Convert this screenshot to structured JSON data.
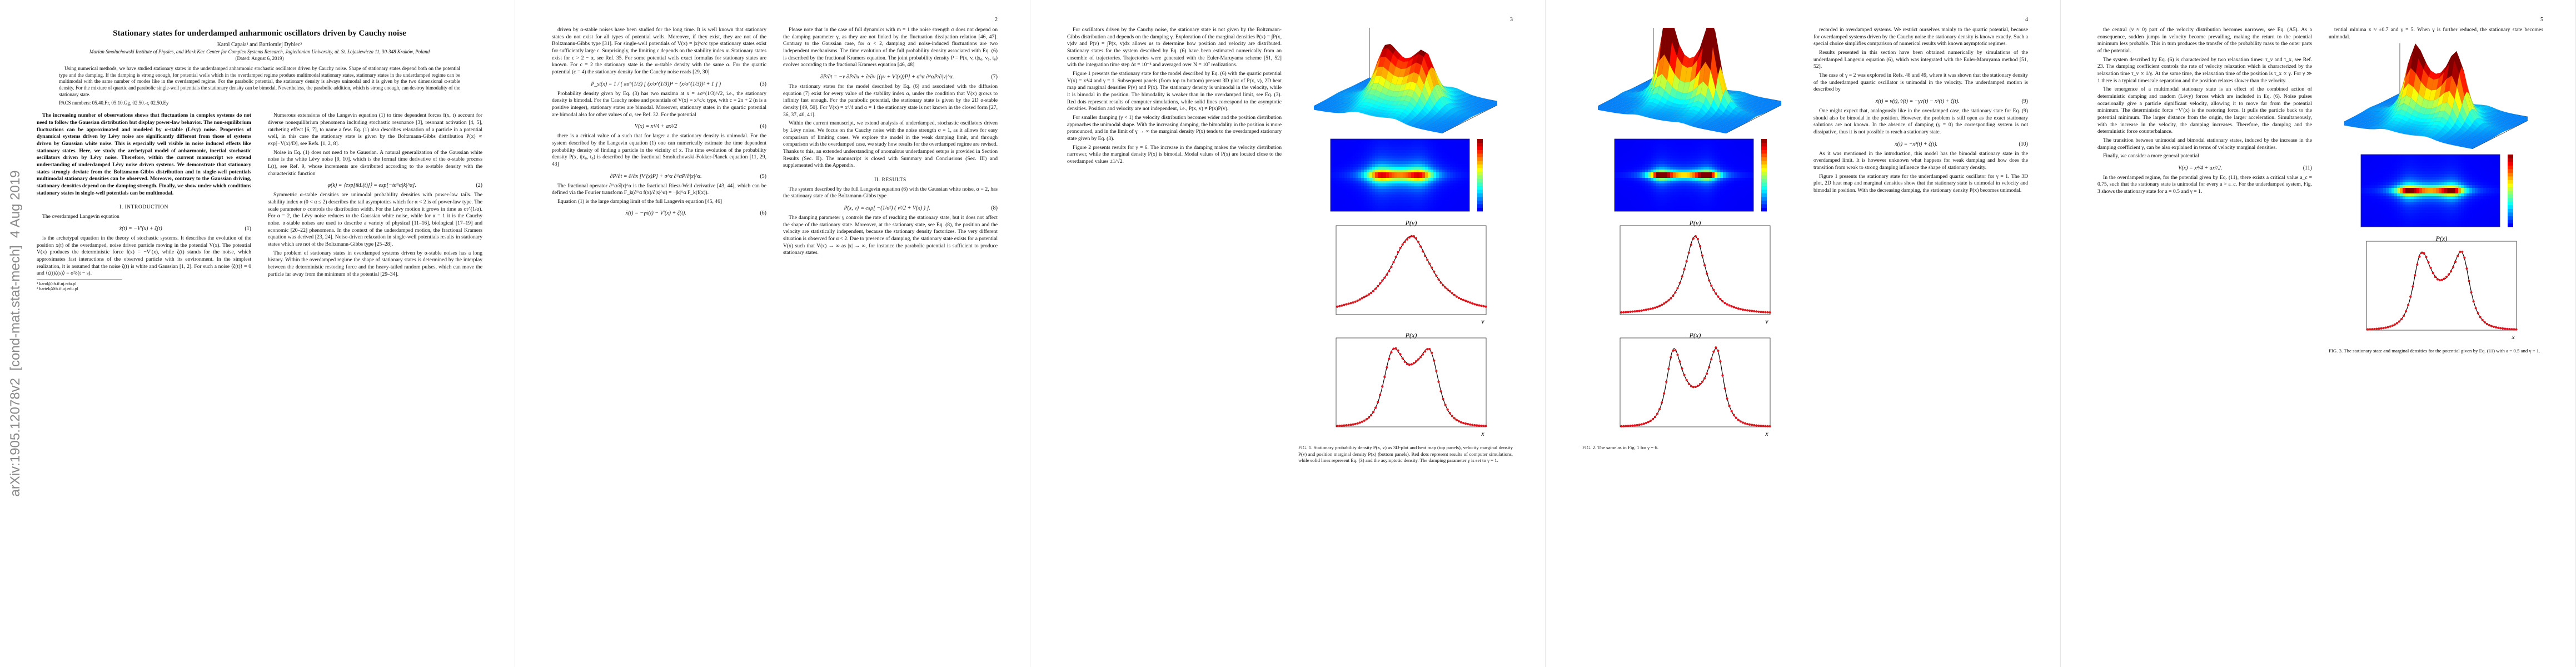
{
  "arxiv_stamp": "arXiv:1905.12078v2  [cond-mat.stat-mech]  4 Aug 2019",
  "pages": [
    {
      "header": {
        "title": "Stationary states for underdamped anharmonic oscillators driven by Cauchy noise",
        "authors": "Karol Capała¹ and Bartłomiej Dybiec²",
        "affiliation": "Marian Smoluchowski Institute of Physics, and Mark Kac Center for Complex Systems Research, Jagiellonian University, ul. St. Łojasiewicza 11, 30-348 Kraków, Poland",
        "date": "(Dated: August 6, 2019)",
        "abstract": "Using numerical methods, we have studied stationary states in the underdamped anharmonic stochastic oscillators driven by Cauchy noise. Shape of stationary states depend both on the potential type and the damping. If the damping is strong enough, for potential wells which in the overdamped regime produce multimodal stationary states, stationary states in the underdamped regime can be multimodal with the same number of modes like in the overdamped regime. For the parabolic potential, the stationary density is always unimodal and it is given by the two dimensional α-stable density. For the mixture of quartic and parabolic single-well potentials the stationary density can be bimodal. Nevertheless, the parabolic addition, which is strong enough, can destroy bimodality of the stationary state.",
        "pacs": "PACS numbers: 05.40.Fr, 05.10.Gg, 02.50.-r, 02.50.Ey"
      },
      "columns": [
        [
          {
            "bold_paragraph": "The increasing number of observations shows that fluctuations in complex systems do not need to follow the Gaussian distribution but display power-law behavior. The non-equilibrium fluctuations can be approximated and modeled by α-stable (Lévy) noise. Properties of dynamical systems driven by Lévy noise are significantly different from those of systems driven by Gaussian white noise. This is especially well visible in noise induced effects like stationary states. Here, we study the archetypal model of anharmonic, inertial stochastic oscillators driven by Lévy noise. Therefore, within the current manuscript we extend understanding of underdamped Lévy noise driven systems. We demonstrate that stationary states strongly deviate from the Boltzmann-Gibbs distribution and in single-well potentials multimodal stationary densities can be observed. Moreover, contrary to the Gaussian driving, stationary densities depend on the damping strength. Finally, we show under which conditions stationary states in single-well potentials can be multimodal."
          },
          {
            "heading": "I.  INTRODUCTION"
          },
          {
            "paragraph": "The overdamped Langevin equation"
          },
          {
            "equation": "ẋ(t) = −V′(x) + ζ(t)",
            "number": "(1)"
          },
          {
            "paragraph": "is the archetypal equation in the theory of stochastic systems. It describes the evolution of the position x(t) of the overdamped, noise driven particle moving in the potential V(x). The potential V(x) produces the deterministic force f(x) = −V′(x), while ζ(t) stands for the noise, which approximates fast interactions of the observed particle with its environment. In the simplest realization, it is assumed that the noise ζ(t) is white and Gaussian [1, 2]. For such a noise ⟨ζ(t)⟩ = 0 and ⟨ζ(t)ζ(s)⟩ = σ²δ(t − s)."
          },
          {
            "footnotes": [
              "¹ karol@th.if.uj.edu.pl",
              "² bartek@th.if.uj.edu.pl"
            ]
          }
        ],
        [
          {
            "paragraph": "Numerous extensions of the Langevin equation (1) to time dependent forces f(x, t) account for diverse nonequilibrium phenomena including stochastic resonance [3], resonant activation [4, 5], ratcheting effect [6, 7], to name a few. Eq. (1) also describes relaxation of a particle in a potential well, in this case the stationary state is given by the Boltzmann-Gibbs distribution P(x) ∝ exp[−V(x)/D], see Refs. [1, 2, 8]."
          },
          {
            "paragraph": "Noise in Eq. (1) does not need to be Gaussian. A natural generalization of the Gaussian white noise is the white Lévy noise [9, 10], which is the formal time derivative of the α-stable process L(t), see Ref. 9, whose increments are distributed according to the α-stable density with the characteristic function"
          },
          {
            "equation": "φ(k) = ⟨exp[ikL(t)]⟩ = exp[−tσ^α|k|^α].",
            "number": "(2)"
          },
          {
            "paragraph": "Symmetric α-stable densities are unimodal probability densities with power-law tails. The stability index α (0 < α ≤ 2) describes the tail asymptotics which for α < 2 is of power-law type. The scale parameter σ controls the distribution width. For the Lévy motion it grows in time as σt^(1/α). For α = 2, the Lévy noise reduces to the Gaussian white noise, while for α = 1 it is the Cauchy noise. α-stable noises are used to describe a variety of physical [11–16], biological [17–19] and economic [20–22] phenomena. In the context of the underdamped motion, the fractional Kramers equation was derived [23, 24]. Noise-driven relaxation in single-well potentials results in stationary states which are not of the Boltzmann-Gibbs type [25–28]."
          },
          {
            "paragraph": "The problem of stationary states in overdamped systems driven by α-stable noises has a long history. Within the overdamped regime the shape of stationary states is determined by the interplay between the deterministic restoring force and the heavy-tailed random pulses, which can move the particle far away from the minimum of the potential [29–34]."
          }
        ]
      ]
    },
    {
      "number": "2",
      "columns": [
        [
          {
            "paragraph": "driven by α-stable noises have been studied for the long time. It is well known that stationary states do not exist for all types of potential wells. Moreover, if they exist, they are not of the Boltzmann-Gibbs type [31]. For single-well potentials of V(x) = |x|^c/c type stationary states exist for sufficiently large c. Surprisingly, the limiting c depends on the stability index α. Stationary states exist for c > 2 − α, see Ref. 35. For some potential wells exact formulas for stationary states are known. For c = 2 the stationary state is the α-stable density with the same α. For the quartic potential (c = 4) the stationary density for the Cauchy noise reads [29, 30]"
          },
          {
            "equation": "P_st(x) = 1 / ( πσ^(1/3) [ (x/σ^(1/3))⁴ − (x/σ^(1/3))² + 1 ] )",
            "number": "(3)"
          },
          {
            "paragraph": "Probability density given by Eq. (3) has two maxima at x = ±σ^(1/3)/√2, i.e., the stationary density is bimodal. For the Cauchy noise and potentials of V(x) = x^c/c type, with c = 2n + 2 (n is a positive integer), stationary states are bimodal. Moreover, stationary states in the quartic potential are bimodal also for other values of α, see Ref. 32. For the potential"
          },
          {
            "equation": "V(x) = x⁴/4 + ax²/2",
            "number": "(4)"
          },
          {
            "paragraph": "there is a critical value of a such that for larger a the stationary density is unimodal. For the system described by the Langevin equation (1) one can numerically estimate the time dependent probability density of finding a particle in the vicinity of x. The time evolution of the probability density P(x, t|x₀, t₀) is described by the fractional Smoluchowski-Fokker-Planck equation [11, 29, 43]"
          },
          {
            "equation": "∂P/∂t = ∂/∂x [V′(x)P] + σ^α ∂^αP/∂|x|^α.",
            "number": "(5)"
          },
          {
            "paragraph": "The fractional operator ∂^α/∂|x|^α is the fractional Riesz-Weil derivative [43, 44], which can be defined via the Fourier transform F_k(∂^α f(x)/∂|x|^α) = −|k|^α F_k(f(x))."
          },
          {
            "paragraph": "Equation (1) is the large damping limit of the full Langevin equation [45, 46]"
          },
          {
            "equation": "ẍ(t) = −γẋ(t) − V′(x) + ζ(t).",
            "number": "(6)"
          }
        ],
        [
          {
            "paragraph": "Please note that in the case of full dynamics with m = 1 the noise strength σ does not depend on the damping parameter γ, as they are not linked by the fluctuation dissipation relation [46, 47]. Contrary to the Gaussian case, for α < 2, damping and noise-induced fluctuations are two independent mechanisms. The time evolution of the full probability density associated with Eq. (6) is described by the fractional Kramers equation. The joint probability density P = P(x, v, t|x₀, v₀, t₀) evolves according to the fractional Kramers equation [46, 48]"
          },
          {
            "equation": "∂P/∂t = −v ∂P/∂x + ∂/∂v [(γv + V′(x))P] + σ^α ∂^αP/∂|v|^α.",
            "number": "(7)"
          },
          {
            "paragraph": "The stationary states for the model described by Eq. (6) and associated with the diffusion equation (7) exist for every value of the stability index α, under the condition that V(x) grows to infinity fast enough. For the parabolic potential, the stationary state is given by the 2D α-stable density [49, 50]. For V(x) = x⁴/4 and α = 1 the stationary state is not known in the closed form [27, 36, 37, 40, 41]."
          },
          {
            "paragraph": "Within the current manuscript, we extend analysis of underdamped, stochastic oscillators driven by Lévy noise. We focus on the Cauchy noise with the noise strength σ = 1, as it allows for easy comparison of limiting cases. We explore the model in the weak damping limit, and through comparison with the overdamped case, we study how results for the overdamped regime are revised. Thanks to this, an extended understanding of anomalous underdamped setups is provided in Section Results (Sec. II). The manuscript is closed with Summary and Conclusions (Sec. III) and supplemented with the Appendix."
          },
          {
            "heading": "II.  RESULTS"
          },
          {
            "paragraph": "The system described by the full Langevin equation (6) with the Gaussian white noise, α = 2, has the stationary state of the Boltzmann-Gibbs type"
          },
          {
            "equation": "P(x, v) ∝ exp[ −(1/σ²) ( v²/2 + V(x) ) ].",
            "number": "(8)"
          },
          {
            "paragraph": "The damping parameter γ controls the rate of reaching the stationary state, but it does not affect the shape of the stationary state. Moreover, at the stationary state, see Eq. (8), the position and the velocity are statistically independent, because the stationary density factorizes. The very different situation is observed for α < 2. Due to presence of damping, the stationary state exists for a potential V(x) such that V(x) → ∞ as |x| → ∞, for instance the parabolic potential is sufficient to produce stationary states."
          }
        ]
      ]
    },
    {
      "number": "3",
      "columns": [
        [
          {
            "paragraph": "For oscillators driven by the Cauchy noise, the stationary state is not given by the Boltzmann-Gibbs distribution and depends on the damping γ. Exploration of the marginal densities P(x) = ∫P(x, v)dv and P(v) = ∫P(x, v)dx allows us to determine how position and velocity are distributed. Stationary states for the system described by Eq. (6) have been estimated numerically from an ensemble of trajectories. Trajectories were generated with the Euler-Maruyama scheme [51, 52] with the integration time step Δt = 10⁻⁴ and averaged over N = 10⁷ realizations."
          },
          {
            "paragraph": "Figure 1 presents the stationary state for the model described by Eq. (6) with the quartic potential V(x) = x⁴/4 and γ = 1. Subsequent panels (from top to bottom) present 3D plot of P(x, v), 2D heat map and marginal densities P(v) and P(x). The stationary density is unimodal in the velocity, while it is bimodal in the position. The bimodality is weaker than in the overdamped limit, see Eq. (3). Red dots represent results of computer simulations, while solid lines correspond to the asymptotic densities. Position and velocity are not independent, i.e., P(x, v) ≠ P(x)P(v)."
          },
          {
            "paragraph": "For smaller damping (γ < 1) the velocity distribution becomes wider and the position distribution approaches the unimodal shape. With the increasing damping, the bimodality in the position is more pronounced, and in the limit of γ → ∞ the marginal density P(x) tends to the overdamped stationary state given by Eq. (3)."
          },
          {
            "paragraph": "Figure 2 presents results for γ = 6. The increase in the damping makes the velocity distribution narrower, while the marginal density P(x) is bimodal. Modal values of P(x) are located close to the overdamped values ±1/√2."
          }
        ],
        [
          {
            "caption": "FIG. 1. Stationary probability density P(x, v) as 3D-plot and heat map (top panels), velocity marginal density P(v) and position marginal density P(x) (bottom panels). Red dots represent results of computer simulations, while solid lines represent Eq. (3) and the asymptotic density. The damping parameter γ is set to γ = 1.",
            "plots": [
              {
                "ylabel": "P(v)",
                "xlabel": "v"
              },
              {
                "ylabel": "P(x)",
                "xlabel": "x"
              }
            ]
          }
        ]
      ]
    },
    {
      "number": "4",
      "columns": [
        [
          {
            "caption": "FIG. 2. The same as in Fig. 1 for γ = 6.",
            "plots": [
              {
                "ylabel": "P(v)",
                "xlabel": "v"
              },
              {
                "ylabel": "P(x)",
                "xlabel": "x"
              }
            ]
          }
        ],
        [
          {
            "paragraph": "recorded in overdamped systems. We restrict ourselves mainly to the quartic potential, because for overdamped systems driven by the Cauchy noise the stationary density is known exactly. Such a special choice simplifies comparison of numerical results with known asymptotic regimes."
          },
          {
            "paragraph": "Results presented in this section have been obtained numerically by simulations of the underdamped Langevin equation (6), which was integrated with the Euler-Maruyama method [51, 52]."
          },
          {
            "paragraph": "The case of γ = 2 was explored in Refs. 48 and 49, where it was shown that the stationary density of the underdamped quartic oscillator is unimodal in the velocity. The underdamped motion is described by"
          },
          {
            "equation": "ẋ(t) = v(t),   v̇(t) = −γv(t) − x³(t) + ζ(t).",
            "number": "(9)"
          },
          {
            "paragraph": "One might expect that, analogously like in the overdamped case, the stationary state for Eq. (9) should also be bimodal in the position. However, the problem is still open as the exact stationary solutions are not known. In the absence of damping (γ = 0) the corresponding system is not dissipative, thus it is not possible to reach a stationary state."
          },
          {
            "equation": "ẍ(t) = −x³(t) + ζ(t).",
            "number": "(10)"
          },
          {
            "paragraph": "As it was mentioned in the introduction, this model has the bimodal stationary state in the overdamped limit. It is however unknown what happens for weak damping and how does the transition from weak to strong damping influence the shape of stationary density."
          },
          {
            "paragraph": "Figure 1 presents the stationary state for the underdamped quartic oscillator for γ = 1. The 3D plot, 2D heat map and marginal densities show that the stationary state is unimodal in velocity and bimodal in position. With the decreasing damping, the stationary density P(x) becomes unimodal."
          }
        ]
      ]
    },
    {
      "number": "5",
      "columns": [
        [
          {
            "paragraph": "the central (v ≈ 0) part of the velocity distribution becomes narrower, see Eq. (A5). As a consequence, sudden jumps in velocity become prevailing, making the return to the potential minimum less probable. This in turn produces the transfer of the probability mass to the outer parts of the potential."
          },
          {
            "paragraph": "The system described by Eq. (6) is characterized by two relaxation times: τ_v and τ_x, see Ref. 23. The damping coefficient controls the rate of velocity relaxation which is characterized by the relaxation time τ_v ∝ 1/γ. At the same time, the relaxation time of the position is τ_x ∝ γ. For γ ≫ 1 there is a typical timescale separation and the position relaxes slower than the velocity."
          },
          {
            "paragraph": "The emergence of a multimodal stationary state is an effect of the combined action of deterministic damping and random (Lévy) forces which are included in Eq. (6). Noise pulses occasionally give a particle significant velocity, allowing it to move far from the potential minimum. The deterministic force −V′(x) is the restoring force. It pulls the particle back to the potential minimum. The larger distance from the origin, the larger acceleration. Simultaneously, with the increase in the velocity, the damping increases. Therefore, the damping and the deterministic force counterbalance."
          },
          {
            "paragraph": "The transition between unimodal and bimodal stationary states, induced by the increase in the damping coefficient γ, can be also explained in terms of velocity marginal densities."
          },
          {
            "paragraph": "Finally, we consider a more general potential"
          },
          {
            "equation": "V(x) = x⁴/4 + ax²/2.",
            "number": "(11)"
          },
          {
            "paragraph": "In the overdamped regime, for the potential given by Eq. (11), there exists a critical value a_c = 0.75, such that the stationary state is unimodal for every a > a_c. For the underdamped system, Fig. 3 shows the stationary state for a = 0.5 and γ = 1."
          }
        ],
        [
          {
            "paragraph": "tential minima x ≈ ±0.7 and γ = 5. When γ is further reduced, the stationary state becomes unimodal."
          },
          {
            "caption": "FIG. 3. The stationary state and marginal densities for the potential given by Eq. (11) with a = 0.5 and γ = 1.",
            "plots": [
              {
                "ylabel": "P(x)",
                "xlabel": "x"
              }
            ]
          }
        ]
      ]
    }
  ]
}
